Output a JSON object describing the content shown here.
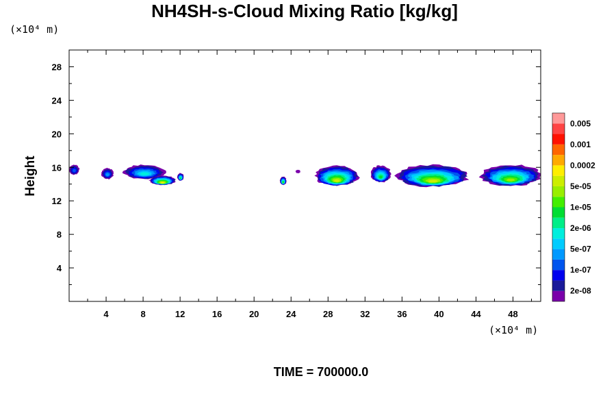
{
  "chart_data": {
    "type": "heatmap",
    "title": "NH4SH-s-Cloud Mixing Ratio [kg/kg]",
    "ylabel": "Height",
    "x_scale_label": "(×10⁴ m)",
    "y_scale_label": "(×10⁴ m)",
    "xlim": [
      0,
      51
    ],
    "ylim": [
      0,
      30
    ],
    "x_ticks": [
      4,
      8,
      12,
      16,
      20,
      24,
      28,
      32,
      36,
      40,
      44,
      48
    ],
    "y_ticks": [
      4,
      8,
      12,
      16,
      20,
      24,
      28
    ],
    "grid": false,
    "footer": "TIME = 700000.0",
    "colorbar": {
      "colors": [
        "#7a00aa",
        "#1a1a99",
        "#0000ee",
        "#0055ee",
        "#0099ff",
        "#00ccff",
        "#00eedd",
        "#00ee88",
        "#00dd33",
        "#44ee00",
        "#99ee00",
        "#ccee00",
        "#ffee00",
        "#ffaa00",
        "#ff6600",
        "#ff1100",
        "#ff4444",
        "#ff9999"
      ],
      "labels": [
        "2e-08",
        "1e-07",
        "5e-07",
        "2e-06",
        "1e-05",
        "5e-05",
        "0.0002",
        "0.001",
        "0.005"
      ]
    },
    "cloud_regions": [
      {
        "x": [
          0.0,
          1.1
        ],
        "y": [
          15.1,
          16.3
        ],
        "peak_level": 3
      },
      {
        "x": [
          3.5,
          4.8
        ],
        "y": [
          14.6,
          15.9
        ],
        "peak_level": 4
      },
      {
        "x": [
          5.9,
          10.4
        ],
        "y": [
          14.6,
          16.3
        ],
        "peak_level": 6
      },
      {
        "x": [
          8.7,
          11.5
        ],
        "y": [
          13.9,
          15.0
        ],
        "peak_level": 12
      },
      {
        "x": [
          11.7,
          12.4
        ],
        "y": [
          14.4,
          15.3
        ],
        "peak_level": 8
      },
      {
        "x": [
          22.8,
          23.5
        ],
        "y": [
          13.9,
          14.9
        ],
        "peak_level": 9
      },
      {
        "x": [
          24.5,
          25.0
        ],
        "y": [
          15.3,
          15.7
        ],
        "peak_level": 0
      },
      {
        "x": [
          26.6,
          31.3
        ],
        "y": [
          13.8,
          16.2
        ],
        "peak_level": 11
      },
      {
        "x": [
          32.6,
          34.8
        ],
        "y": [
          14.2,
          16.2
        ],
        "peak_level": 8
      },
      {
        "x": [
          35.5,
          43.2
        ],
        "y": [
          13.7,
          16.3
        ],
        "peak_level": 11
      },
      {
        "x": [
          44.5,
          51.0
        ],
        "y": [
          13.8,
          16.3
        ],
        "peak_level": 10
      }
    ]
  }
}
